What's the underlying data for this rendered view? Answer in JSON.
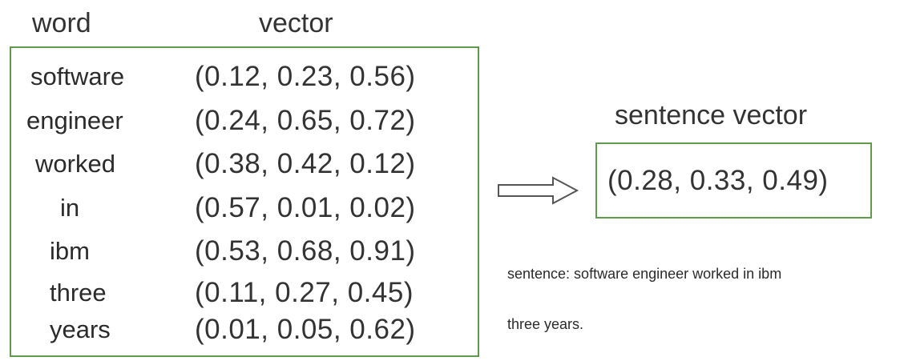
{
  "table": {
    "headers": [
      "word",
      "vector"
    ],
    "rows": [
      [
        "software",
        "(0.12, 0.23, 0.56)"
      ],
      [
        "engineer",
        "(0.24, 0.65, 0.72)"
      ],
      [
        "worked",
        "(0.38, 0.42, 0.12)"
      ],
      [
        "in",
        "(0.57, 0.01, 0.02)"
      ],
      [
        "ibm",
        "(0.53, 0.68, 0.91)"
      ],
      [
        "three",
        "(0.11, 0.27, 0.45)"
      ],
      [
        "years",
        "(0.01, 0.05, 0.62)"
      ]
    ]
  },
  "sentence_vector": {
    "title": "sentence vector",
    "value": "(0.28, 0.33, 0.49)"
  },
  "sentence": {
    "lines": [
      "sentence: software engineer worked in ibm",
      "three years."
    ]
  }
}
